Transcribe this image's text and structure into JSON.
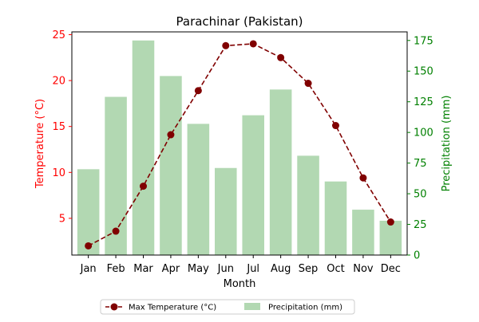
{
  "chart_data": {
    "type": "bar+line",
    "title": "Parachinar (Pakistan)",
    "xlabel": "Month",
    "ylabel_left": "Temperature (°C)",
    "ylabel_right": "Precipitation (mm)",
    "categories": [
      "Jan",
      "Feb",
      "Mar",
      "Apr",
      "May",
      "Jun",
      "Jul",
      "Aug",
      "Sep",
      "Oct",
      "Nov",
      "Dec"
    ],
    "series": [
      {
        "name": "Max Temperature (°C)",
        "type": "line",
        "axis": "left",
        "color": "#800000",
        "linestyle": "dashed",
        "marker": "circle",
        "values": [
          2.0,
          3.6,
          8.5,
          14.1,
          18.9,
          23.8,
          24.0,
          22.5,
          19.7,
          15.1,
          9.4,
          4.6
        ]
      },
      {
        "name": "Precipitation (mm)",
        "type": "bar",
        "axis": "right",
        "color": "#b2d8b2",
        "values": [
          70,
          129,
          175,
          146,
          107,
          71,
          114,
          135,
          81,
          60,
          37,
          28
        ]
      }
    ],
    "ylim_left": [
      1.0,
      25.3
    ],
    "yticks_left": [
      "5",
      "10",
      "15",
      "20",
      "25"
    ],
    "left_axis_color": "#ff0000",
    "ylim_right": [
      0,
      182
    ],
    "yticks_right": [
      "0",
      "25",
      "50",
      "75",
      "100",
      "125",
      "150",
      "175"
    ],
    "right_axis_color": "#008000",
    "grid": false,
    "legend": {
      "placement": "bottom-center"
    }
  }
}
